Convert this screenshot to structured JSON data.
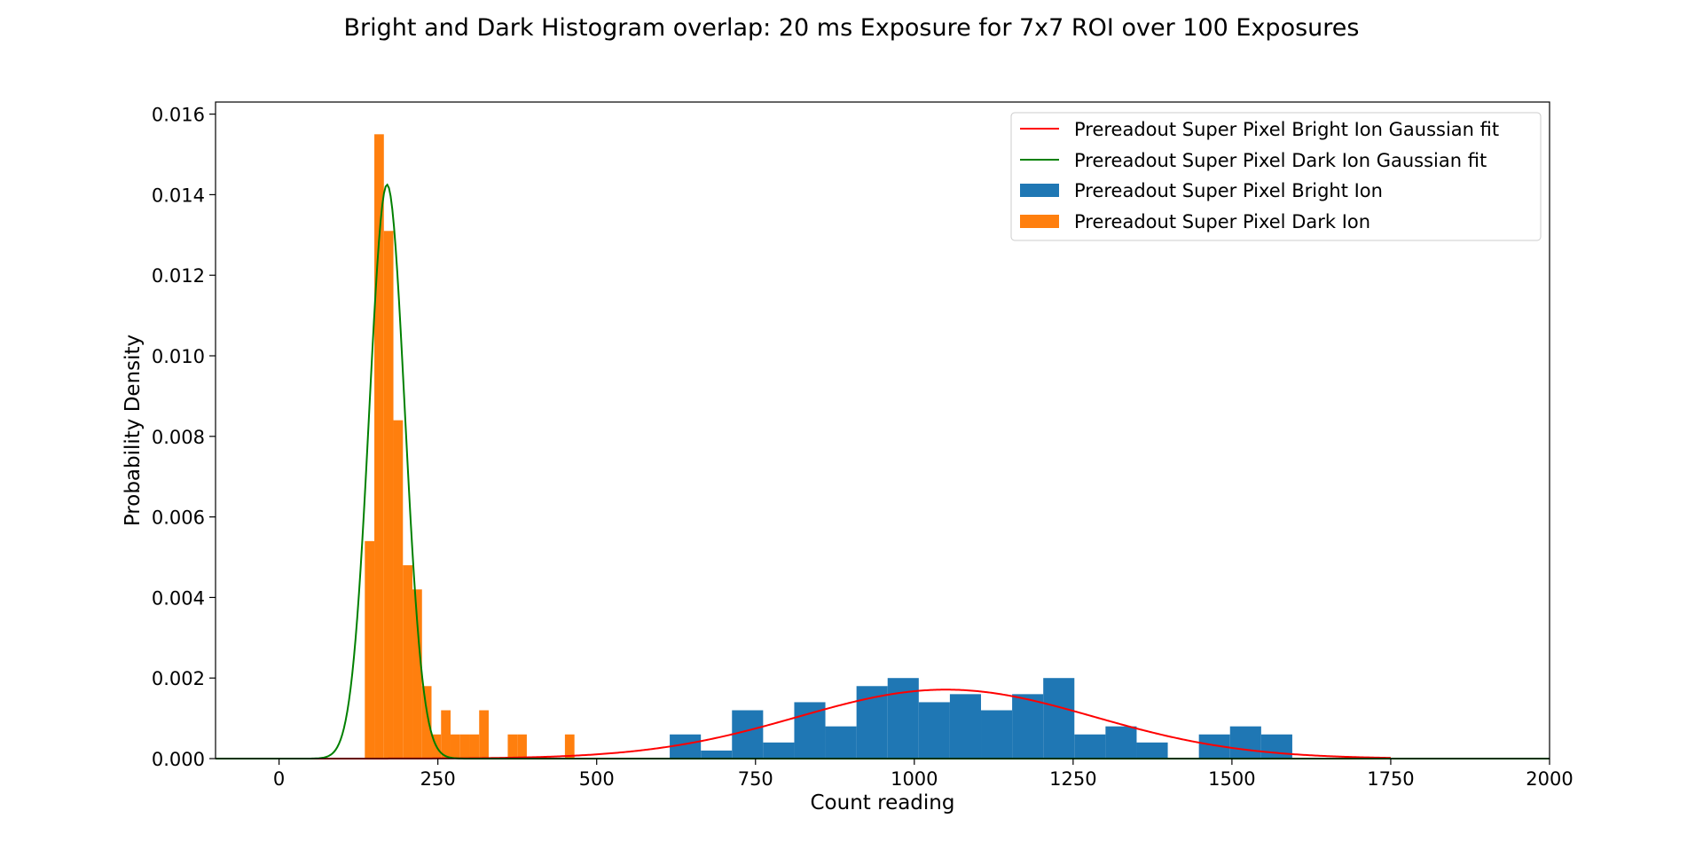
{
  "chart_data": {
    "type": "bar",
    "title": "Bright and Dark Histogram overlap: 20 ms Exposure for 7x7 ROI over 100 Exposures",
    "xlabel": "Count reading",
    "ylabel": "Probability Density",
    "xlim": [
      -100,
      2000
    ],
    "ylim": [
      0,
      0.0163
    ],
    "x_ticks": [
      0,
      250,
      500,
      750,
      1000,
      1250,
      1500,
      1750,
      2000
    ],
    "x_tick_labels": [
      "0",
      "250",
      "500",
      "750",
      "1000",
      "1250",
      "1500",
      "1750",
      "2000"
    ],
    "y_ticks": [
      0,
      0.002,
      0.004,
      0.006,
      0.008,
      0.01,
      0.012,
      0.014,
      0.016
    ],
    "y_tick_labels": [
      "0.000",
      "0.002",
      "0.004",
      "0.006",
      "0.008",
      "0.010",
      "0.012",
      "0.014",
      "0.016"
    ],
    "grid": false,
    "legend_position": "top-right",
    "histograms": [
      {
        "name": "Prereadout Super Pixel Bright Ion",
        "color": "#1f77b4",
        "bin_edges": [
          615,
          664,
          713,
          762,
          811,
          860,
          909,
          958,
          1007,
          1056,
          1105,
          1154,
          1203,
          1252,
          1301,
          1350,
          1399,
          1448,
          1497,
          1546,
          1595
        ],
        "densities": [
          0.0006,
          0.0002,
          0.0012,
          0.0004,
          0.0014,
          0.0008,
          0.0018,
          0.002,
          0.0014,
          0.0016,
          0.0012,
          0.0016,
          0.002,
          0.0006,
          0.0008,
          0.0004,
          0,
          0.0006,
          0.0008,
          0.0006
        ]
      },
      {
        "name": "Prereadout Super Pixel Dark Ion",
        "color": "#ff7f0e",
        "bin_edges": [
          135,
          150,
          165,
          180,
          195,
          210,
          225,
          240,
          255,
          270,
          285,
          300,
          315,
          330,
          345,
          360,
          375,
          390,
          405,
          420,
          435,
          450,
          465
        ],
        "densities": [
          0.0054,
          0.0155,
          0.0131,
          0.0084,
          0.0048,
          0.0042,
          0.0018,
          0.0006,
          0.0012,
          0.0006,
          0.0006,
          0.0006,
          0.0012,
          0,
          0,
          0.0006,
          0.0006,
          0,
          0,
          0,
          0,
          0.0006
        ]
      }
    ],
    "fits": [
      {
        "name": "Prereadout Super Pixel Bright Ion Gaussian fit",
        "color": "#ff0000",
        "mean": 1050,
        "sigma": 233,
        "x_range": [
          -100,
          1750
        ]
      },
      {
        "name": "Prereadout Super Pixel Dark Ion Gaussian fit",
        "color": "#008000",
        "mean": 170,
        "sigma": 28,
        "x_range": [
          -100,
          2000
        ]
      }
    ],
    "legend": [
      {
        "label": "Prereadout Super Pixel Bright Ion Gaussian fit",
        "kind": "line",
        "color": "#ff0000"
      },
      {
        "label": "Prereadout Super Pixel Dark Ion Gaussian fit",
        "kind": "line",
        "color": "#008000"
      },
      {
        "label": "Prereadout Super Pixel Bright Ion",
        "kind": "patch",
        "color": "#1f77b4"
      },
      {
        "label": "Prereadout Super Pixel Dark Ion",
        "kind": "patch",
        "color": "#ff7f0e"
      }
    ]
  }
}
